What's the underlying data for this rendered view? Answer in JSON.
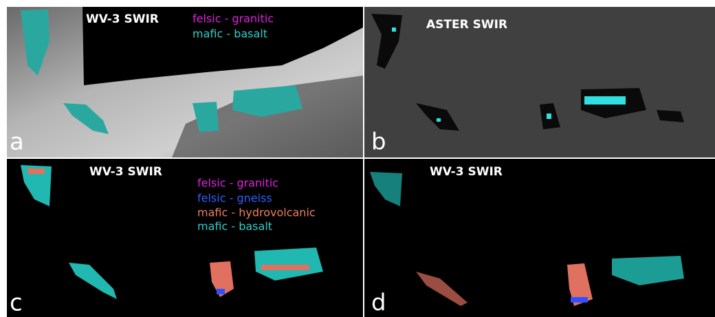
{
  "panels": [
    {
      "letter": "a",
      "title": "WV-3 SWIR",
      "legend": [
        "felsic - granitic",
        "mafic - basalt"
      ]
    },
    {
      "letter": "b",
      "title": "ASTER SWIR"
    },
    {
      "letter": "c",
      "title": "WV-3 SWIR",
      "legend": [
        "felsic - granitic",
        "felsic - gneiss",
        "mafic - hydrovolcanic",
        "mafic - basalt"
      ]
    },
    {
      "letter": "d",
      "title": "WV-3 SWIR"
    }
  ]
}
